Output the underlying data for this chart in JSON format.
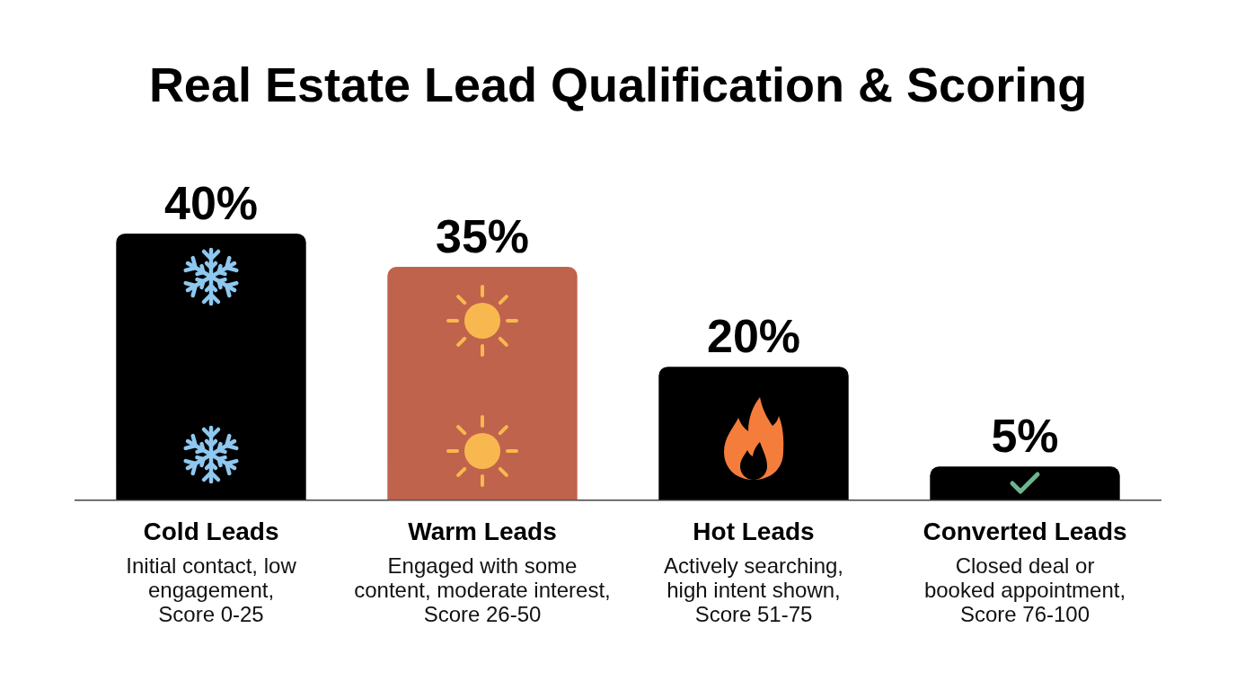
{
  "chart_data": {
    "type": "bar",
    "title": "Real Estate Lead Qualification & Scoring",
    "categories": [
      "Cold Leads",
      "Warm Leads",
      "Hot Leads",
      "Converted Leads"
    ],
    "values": [
      40,
      35,
      20,
      5
    ],
    "colors": [
      "#000000",
      "#c0634c",
      "#000000",
      "#000000"
    ],
    "value_labels": [
      "40%",
      "35%",
      "20%",
      "5%"
    ],
    "annotations": [
      "Initial contact, low\nengagement,\nScore 0-25",
      "Engaged with some\ncontent, moderate interest,\nScore 26-50",
      "Actively searching,\nhigh intent shown,\nScore 51-75",
      "Closed deal or\nbooked appointment,\nScore 76-100"
    ]
  }
}
